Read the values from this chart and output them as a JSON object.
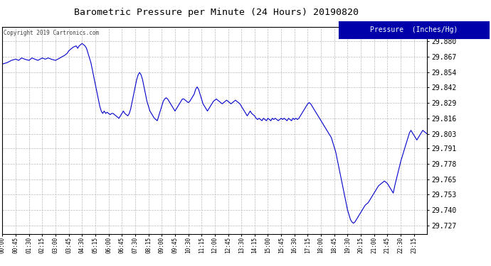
{
  "title": "Barometric Pressure per Minute (24 Hours) 20190820",
  "copyright": "Copyright 2019 Cartronics.com",
  "legend_label": "Pressure  (Inches/Hg)",
  "line_color": "#0000cc",
  "background_color": "#ffffff",
  "grid_color": "#bbbbbb",
  "yticks": [
    29.727,
    29.74,
    29.753,
    29.765,
    29.778,
    29.791,
    29.803,
    29.816,
    29.829,
    29.842,
    29.854,
    29.867,
    29.88
  ],
  "ylim": [
    29.72,
    29.892
  ],
  "x_labels": [
    "00:00",
    "00:45",
    "01:30",
    "02:15",
    "03:00",
    "03:45",
    "04:30",
    "05:15",
    "06:00",
    "06:45",
    "07:30",
    "08:15",
    "09:00",
    "09:45",
    "10:30",
    "11:15",
    "12:00",
    "12:45",
    "13:30",
    "14:15",
    "15:00",
    "15:45",
    "16:30",
    "17:15",
    "18:00",
    "18:45",
    "19:30",
    "20:15",
    "21:00",
    "21:45",
    "22:30",
    "23:15"
  ],
  "num_points": 1441,
  "key_points": {
    "0": 29.861,
    "15": 29.862,
    "30": 29.864,
    "45": 29.865,
    "55": 29.864,
    "65": 29.866,
    "75": 29.865,
    "90": 29.864,
    "100": 29.866,
    "110": 29.865,
    "120": 29.864,
    "135": 29.866,
    "145": 29.865,
    "155": 29.866,
    "165": 29.865,
    "180": 29.864,
    "195": 29.866,
    "210": 29.868,
    "220": 29.87,
    "225": 29.872,
    "235": 29.874,
    "240": 29.875,
    "250": 29.876,
    "255": 29.874,
    "260": 29.876,
    "265": 29.877,
    "270": 29.878,
    "275": 29.877,
    "280": 29.876,
    "285": 29.874,
    "290": 29.87,
    "295": 29.866,
    "300": 29.862,
    "305": 29.856,
    "310": 29.85,
    "315": 29.844,
    "320": 29.838,
    "325": 29.832,
    "330": 29.826,
    "335": 29.822,
    "340": 29.82,
    "345": 29.822,
    "350": 29.82,
    "355": 29.821,
    "360": 29.82,
    "365": 29.819,
    "370": 29.82,
    "375": 29.82,
    "380": 29.819,
    "385": 29.818,
    "390": 29.817,
    "395": 29.816,
    "400": 29.818,
    "405": 29.82,
    "410": 29.822,
    "415": 29.82,
    "420": 29.819,
    "425": 29.818,
    "430": 29.82,
    "435": 29.824,
    "440": 29.83,
    "445": 29.836,
    "450": 29.842,
    "455": 29.848,
    "460": 29.852,
    "465": 29.854,
    "470": 29.852,
    "475": 29.848,
    "480": 29.842,
    "485": 29.836,
    "490": 29.83,
    "495": 29.826,
    "500": 29.822,
    "505": 29.82,
    "510": 29.818,
    "515": 29.816,
    "520": 29.815,
    "525": 29.814,
    "530": 29.818,
    "535": 29.822,
    "540": 29.826,
    "545": 29.83,
    "550": 29.832,
    "555": 29.833,
    "560": 29.832,
    "565": 29.83,
    "570": 29.828,
    "575": 29.826,
    "580": 29.824,
    "585": 29.822,
    "590": 29.824,
    "595": 29.826,
    "600": 29.828,
    "605": 29.83,
    "610": 29.832,
    "615": 29.832,
    "620": 29.831,
    "625": 29.83,
    "630": 29.829,
    "635": 29.83,
    "640": 29.832,
    "645": 29.834,
    "650": 29.836,
    "655": 29.84,
    "660": 29.842,
    "665": 29.84,
    "670": 29.836,
    "675": 29.832,
    "680": 29.828,
    "685": 29.826,
    "690": 29.824,
    "695": 29.822,
    "700": 29.824,
    "705": 29.826,
    "710": 29.828,
    "715": 29.83,
    "720": 29.831,
    "725": 29.832,
    "730": 29.831,
    "735": 29.83,
    "740": 29.829,
    "745": 29.828,
    "750": 29.829,
    "755": 29.83,
    "760": 29.831,
    "765": 29.83,
    "770": 29.829,
    "775": 29.828,
    "780": 29.829,
    "785": 29.83,
    "790": 29.831,
    "795": 29.83,
    "800": 29.829,
    "805": 29.828,
    "810": 29.826,
    "815": 29.824,
    "820": 29.822,
    "825": 29.82,
    "830": 29.818,
    "835": 29.82,
    "840": 29.822,
    "845": 29.82,
    "850": 29.819,
    "855": 29.818,
    "860": 29.816,
    "865": 29.815,
    "870": 29.816,
    "875": 29.815,
    "880": 29.814,
    "885": 29.816,
    "890": 29.815,
    "895": 29.814,
    "900": 29.816,
    "905": 29.815,
    "910": 29.814,
    "915": 29.816,
    "920": 29.815,
    "925": 29.816,
    "930": 29.815,
    "935": 29.814,
    "940": 29.815,
    "945": 29.816,
    "950": 29.815,
    "955": 29.816,
    "960": 29.815,
    "965": 29.814,
    "970": 29.816,
    "975": 29.815,
    "980": 29.814,
    "985": 29.816,
    "990": 29.815,
    "995": 29.816,
    "1000": 29.815,
    "1005": 29.816,
    "1010": 29.818,
    "1015": 29.82,
    "1020": 29.822,
    "1025": 29.824,
    "1030": 29.826,
    "1035": 29.828,
    "1040": 29.829,
    "1045": 29.828,
    "1050": 29.826,
    "1055": 29.824,
    "1060": 29.822,
    "1065": 29.82,
    "1070": 29.818,
    "1075": 29.816,
    "1080": 29.814,
    "1085": 29.812,
    "1090": 29.81,
    "1095": 29.808,
    "1100": 29.806,
    "1105": 29.804,
    "1110": 29.802,
    "1115": 29.8,
    "1120": 29.796,
    "1125": 29.792,
    "1130": 29.788,
    "1135": 29.782,
    "1140": 29.776,
    "1145": 29.77,
    "1150": 29.764,
    "1155": 29.758,
    "1160": 29.752,
    "1165": 29.746,
    "1170": 29.74,
    "1175": 29.736,
    "1180": 29.732,
    "1185": 29.73,
    "1190": 29.729,
    "1195": 29.73,
    "1200": 29.732,
    "1205": 29.734,
    "1210": 29.736,
    "1215": 29.738,
    "1220": 29.74,
    "1225": 29.742,
    "1230": 29.744,
    "1235": 29.745,
    "1240": 29.746,
    "1245": 29.748,
    "1250": 29.75,
    "1255": 29.752,
    "1260": 29.754,
    "1265": 29.756,
    "1270": 29.758,
    "1275": 29.76,
    "1280": 29.761,
    "1285": 29.762,
    "1290": 29.763,
    "1295": 29.764,
    "1300": 29.763,
    "1305": 29.762,
    "1310": 29.76,
    "1315": 29.758,
    "1320": 29.756,
    "1325": 29.754,
    "1330": 29.76,
    "1335": 29.765,
    "1340": 29.77,
    "1345": 29.775,
    "1350": 29.78,
    "1355": 29.784,
    "1360": 29.788,
    "1365": 29.792,
    "1370": 29.796,
    "1375": 29.8,
    "1380": 29.804,
    "1385": 29.806,
    "1390": 29.804,
    "1395": 29.802,
    "1400": 29.8,
    "1405": 29.798,
    "1410": 29.8,
    "1415": 29.802,
    "1420": 29.804,
    "1425": 29.806,
    "1430": 29.805,
    "1435": 29.804,
    "1440": 29.803
  }
}
